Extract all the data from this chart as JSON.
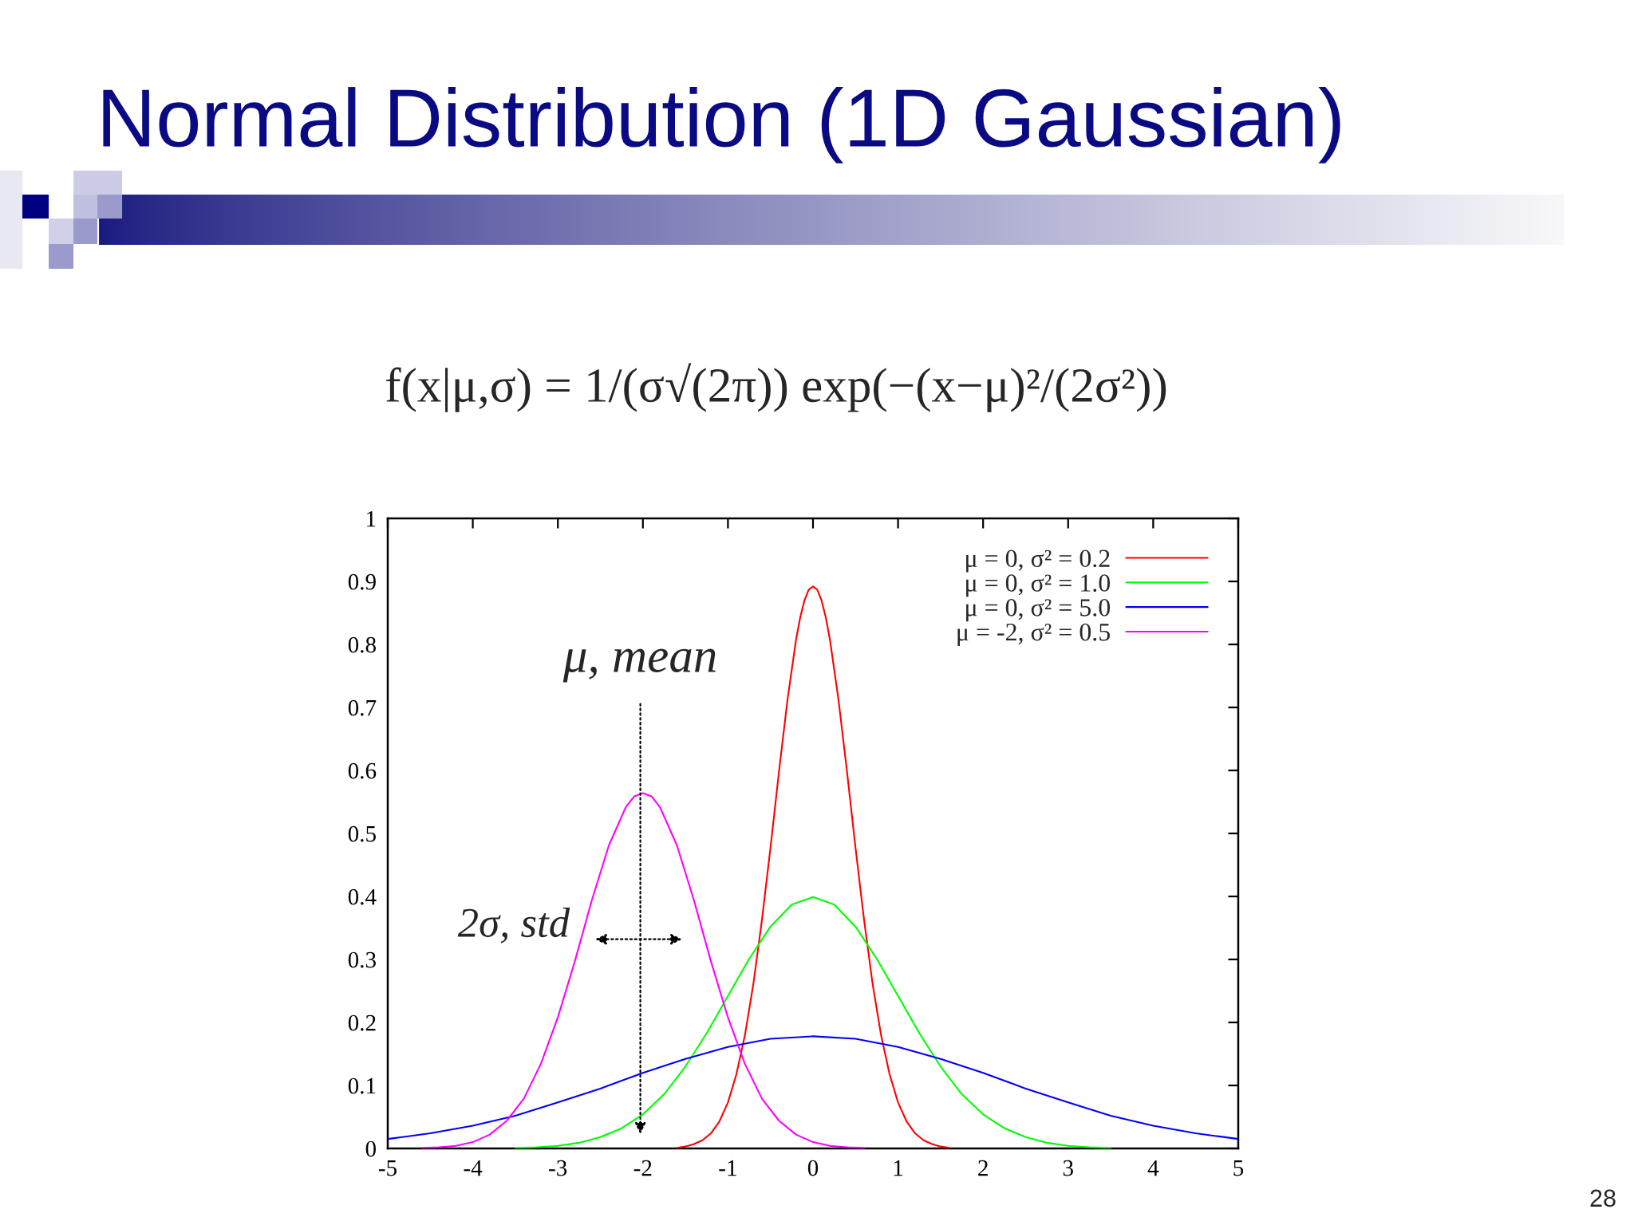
{
  "chart_data": {
    "type": "line",
    "title": "Normal Distribution (1D Gaussian)",
    "subtitle": "f(x|μ,σ) = 1/(σ√(2π)) exp(−(x−μ)²/(2σ²))",
    "xlim": [
      -5,
      5
    ],
    "xticks": [
      -5,
      -4,
      -3,
      -2,
      -1,
      0,
      1,
      2,
      3,
      4,
      5
    ],
    "ylim": [
      0,
      1
    ],
    "yticks": [
      0,
      0.1,
      0.2,
      0.3,
      0.4,
      0.5,
      0.6,
      0.7,
      0.8,
      0.9,
      1
    ],
    "legend": "top right",
    "series": [
      {
        "name": "μ = 0, σ² = 0.2",
        "color": "#ff0000",
        "x": [
          -1.6,
          -1.5,
          -1.4,
          -1.3,
          -1.2,
          -1.1,
          -1,
          -0.9,
          -0.8,
          -0.7,
          -0.6,
          -0.5,
          -0.4,
          -0.3,
          -0.2,
          -0.15,
          -0.1,
          -0.05,
          0,
          0.05,
          0.1,
          0.15,
          0.2,
          0.3,
          0.4,
          0.5,
          0.6,
          0.7,
          0.8,
          0.9,
          1,
          1.1,
          1.2,
          1.3,
          1.4,
          1.5,
          1.6
        ],
        "values": [
          0.001,
          0.003,
          0.007,
          0.013,
          0.024,
          0.043,
          0.073,
          0.118,
          0.18,
          0.262,
          0.363,
          0.477,
          0.598,
          0.712,
          0.807,
          0.843,
          0.87,
          0.887,
          0.892,
          0.887,
          0.87,
          0.843,
          0.807,
          0.712,
          0.598,
          0.477,
          0.363,
          0.262,
          0.18,
          0.118,
          0.073,
          0.043,
          0.024,
          0.013,
          0.007,
          0.003,
          0.001
        ]
      },
      {
        "name": "μ = 0, σ² = 1.0",
        "color": "#00ff00",
        "x": [
          -3.5,
          -3.25,
          -3,
          -2.75,
          -2.5,
          -2.25,
          -2,
          -1.75,
          -1.5,
          -1.25,
          -1,
          -0.75,
          -0.5,
          -0.25,
          0,
          0.25,
          0.5,
          0.75,
          1,
          1.25,
          1.5,
          1.75,
          2,
          2.25,
          2.5,
          2.75,
          3,
          3.25,
          3.5
        ],
        "values": [
          0.001,
          0.002,
          0.004,
          0.009,
          0.018,
          0.032,
          0.054,
          0.086,
          0.13,
          0.183,
          0.242,
          0.301,
          0.352,
          0.387,
          0.399,
          0.387,
          0.352,
          0.301,
          0.242,
          0.183,
          0.13,
          0.086,
          0.054,
          0.032,
          0.018,
          0.009,
          0.004,
          0.002,
          0.001
        ]
      },
      {
        "name": "μ = 0, σ² = 5.0",
        "color": "#0000ff",
        "x": [
          -5,
          -4.5,
          -4,
          -3.5,
          -3,
          -2.5,
          -2,
          -1.5,
          -1,
          -0.5,
          0,
          0.5,
          1,
          1.5,
          2,
          2.5,
          3,
          3.5,
          4,
          4.5,
          5
        ],
        "values": [
          0.015,
          0.024,
          0.036,
          0.052,
          0.073,
          0.095,
          0.12,
          0.142,
          0.161,
          0.174,
          0.178,
          0.174,
          0.161,
          0.142,
          0.12,
          0.095,
          0.073,
          0.052,
          0.036,
          0.024,
          0.015
        ]
      },
      {
        "name": "μ = -2, σ² = 0.5",
        "color": "#ff00ff",
        "x": [
          -4.6,
          -4.4,
          -4.2,
          -4,
          -3.8,
          -3.6,
          -3.4,
          -3.2,
          -3,
          -2.8,
          -2.6,
          -2.4,
          -2.2,
          -2.1,
          -2,
          -1.9,
          -1.8,
          -1.6,
          -1.4,
          -1.2,
          -1,
          -0.8,
          -0.6,
          -0.4,
          -0.2,
          0,
          0.2,
          0.4,
          0.6
        ],
        "values": [
          0.001,
          0.002,
          0.004,
          0.01,
          0.022,
          0.044,
          0.079,
          0.134,
          0.208,
          0.297,
          0.394,
          0.481,
          0.542,
          0.559,
          0.564,
          0.559,
          0.542,
          0.481,
          0.394,
          0.297,
          0.208,
          0.134,
          0.079,
          0.044,
          0.022,
          0.01,
          0.004,
          0.002,
          0.001
        ]
      }
    ],
    "annotations": [
      "μ, mean",
      "2σ, std",
      "28"
    ]
  }
}
